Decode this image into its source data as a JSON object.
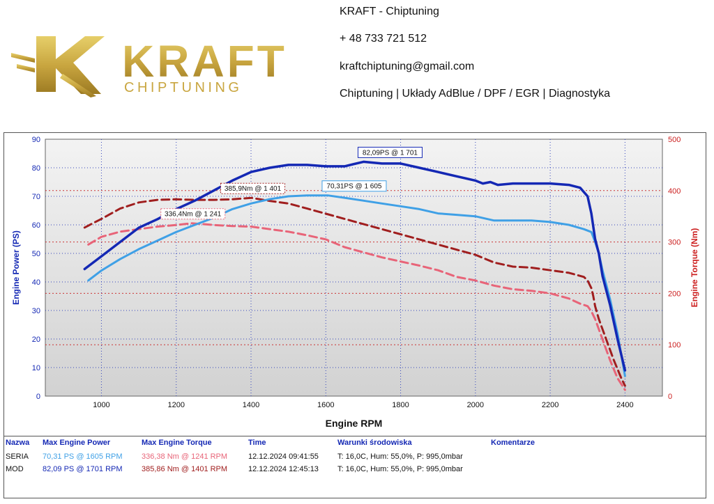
{
  "header": {
    "logo_word": "KRAFT",
    "logo_sub": "CHIPTUNING",
    "company": "KRAFT - Chiptuning",
    "phone": "+ 48 733 721 512",
    "email": "kraftchiptuning@gmail.com",
    "services": "Chiptuning | Układy AdBlue / DPF / EGR | Diagnostyka"
  },
  "chart_data": {
    "type": "line",
    "xlabel": "Engine RPM",
    "ylabel_left": "Engine Power (PS)",
    "ylabel_right": "Engine Torque (Nm)",
    "xlim": [
      850,
      2500
    ],
    "ylim_left": [
      0,
      90
    ],
    "ylim_right": [
      0,
      500
    ],
    "x_ticks": [
      1000,
      1200,
      1400,
      1600,
      1800,
      2000,
      2200,
      2400
    ],
    "y_ticks_left": [
      0,
      10,
      20,
      30,
      40,
      50,
      60,
      70,
      80,
      90
    ],
    "y_ticks_right": [
      0,
      100,
      200,
      300,
      400,
      500
    ],
    "grid": true,
    "series": [
      {
        "name": "MOD Power",
        "axis": "left",
        "color": "#1428b4",
        "style": "solid",
        "x": [
          955,
          1000,
          1050,
          1100,
          1150,
          1200,
          1250,
          1300,
          1350,
          1400,
          1450,
          1500,
          1550,
          1600,
          1650,
          1701,
          1750,
          1800,
          1850,
          1900,
          1950,
          2000,
          2020,
          2040,
          2060,
          2100,
          2150,
          2200,
          2250,
          2280,
          2300,
          2310,
          2320,
          2330,
          2340,
          2360,
          2380,
          2400
        ],
        "y": [
          44.5,
          49,
          54,
          59,
          62,
          65.5,
          68.5,
          72,
          75.5,
          78.5,
          80,
          81,
          81,
          80.5,
          80.5,
          82.1,
          81.5,
          81.5,
          80,
          78.5,
          77,
          75.5,
          74.5,
          75,
          74,
          74.5,
          74.5,
          74.5,
          74,
          73,
          70,
          64,
          55,
          50,
          42,
          32,
          20,
          9
        ]
      },
      {
        "name": "SERIA Power",
        "axis": "left",
        "color": "#3fa0e6",
        "style": "solid",
        "x": [
          965,
          1000,
          1050,
          1100,
          1150,
          1200,
          1250,
          1300,
          1350,
          1400,
          1450,
          1500,
          1550,
          1605,
          1650,
          1700,
          1750,
          1800,
          1850,
          1900,
          1950,
          2000,
          2050,
          2100,
          2150,
          2200,
          2250,
          2290,
          2310,
          2320,
          2330,
          2340,
          2360,
          2380,
          2400
        ],
        "y": [
          40.5,
          44,
          48,
          51.5,
          54.5,
          57.5,
          60,
          62.5,
          65.5,
          67.5,
          69,
          70,
          70.3,
          70.31,
          69.5,
          68.5,
          67.5,
          66.5,
          65.5,
          64,
          63.5,
          63,
          61.5,
          61.5,
          61.5,
          61,
          60,
          58.5,
          57.5,
          54,
          50,
          44,
          34,
          22,
          7
        ]
      },
      {
        "name": "MOD Torque",
        "axis": "right",
        "color": "#a01e1e",
        "style": "dashed",
        "x": [
          955,
          1000,
          1050,
          1100,
          1150,
          1200,
          1250,
          1300,
          1350,
          1401,
          1450,
          1500,
          1550,
          1600,
          1650,
          1700,
          1750,
          1800,
          1850,
          1900,
          1950,
          2000,
          2050,
          2100,
          2150,
          2200,
          2250,
          2290,
          2300,
          2310,
          2315,
          2320,
          2330,
          2350,
          2370,
          2390,
          2400
        ],
        "y": [
          328,
          345,
          365,
          377,
          382,
          383,
          382,
          382,
          383,
          385.9,
          380,
          375,
          365,
          355,
          345,
          335,
          325,
          315,
          305,
          295,
          285,
          275,
          260,
          252,
          250,
          245,
          240,
          232,
          225,
          210,
          195,
          175,
          150,
          110,
          70,
          35,
          20
        ]
      },
      {
        "name": "SERIA Torque",
        "axis": "right",
        "color": "#e86478",
        "style": "dashed",
        "x": [
          965,
          1000,
          1050,
          1100,
          1150,
          1200,
          1241,
          1300,
          1350,
          1400,
          1450,
          1500,
          1550,
          1600,
          1650,
          1700,
          1750,
          1800,
          1850,
          1900,
          1950,
          2000,
          2050,
          2100,
          2150,
          2200,
          2250,
          2280,
          2300,
          2310,
          2320,
          2340,
          2360,
          2380,
          2400
        ],
        "y": [
          295,
          310,
          320,
          325,
          330,
          333,
          336.4,
          333,
          331,
          330,
          325,
          320,
          313,
          305,
          290,
          280,
          270,
          262,
          254,
          245,
          232,
          225,
          215,
          208,
          205,
          200,
          190,
          180,
          175,
          165,
          150,
          110,
          70,
          35,
          12
        ]
      }
    ],
    "annotations": [
      {
        "label": "82,09PS @ 1 701",
        "x": 1701,
        "y": 82.09,
        "axis": "left",
        "border": "#1428b4"
      },
      {
        "label": "70,31PS @ 1 605",
        "x": 1605,
        "y": 70.31,
        "axis": "left",
        "border": "#3fa0e6"
      },
      {
        "label": "385,9Nm @ 1 401",
        "x": 1401,
        "y": 385.9,
        "axis": "right",
        "border": "#a01e1e"
      },
      {
        "label": "336,4Nm @ 1 241",
        "x": 1241,
        "y": 336.4,
        "axis": "right",
        "border": "#e86478"
      }
    ]
  },
  "results": {
    "headers": {
      "name": "Nazwa",
      "power": "Max Engine Power",
      "torque": "Max Engine Torque",
      "time": "Time",
      "conditions": "Warunki środowiska",
      "comments": "Komentarze"
    },
    "rows": [
      {
        "name": "SERIA",
        "power": "70,31 PS @ 1605 RPM",
        "torque": "336,38 Nm @ 1241 RPM",
        "time": "12.12.2024 09:41:55",
        "conditions": "T: 16,0C, Hum: 55,0%, P: 995,0mbar",
        "comments": "",
        "power_color": "#3fa0e6",
        "torque_color": "#e86478"
      },
      {
        "name": "MOD",
        "power": "82,09 PS @ 1701 RPM",
        "torque": "385,86 Nm @ 1401 RPM",
        "time": "12.12.2024 12:45:13",
        "conditions": "T: 16,0C, Hum: 55,0%, P: 995,0mbar",
        "comments": "",
        "power_color": "#1428b4",
        "torque_color": "#a01e1e"
      }
    ]
  }
}
